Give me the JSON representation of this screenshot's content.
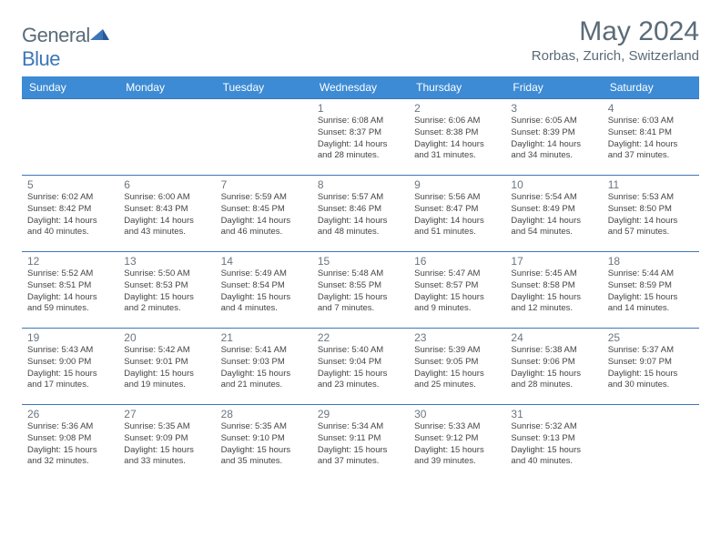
{
  "logo": {
    "word1": "General",
    "word2": "Blue"
  },
  "title": "May 2024",
  "location": "Rorbas, Zurich, Switzerland",
  "colors": {
    "header_bg": "#3d8bd4",
    "header_text": "#ffffff",
    "cell_border": "#3d76b8",
    "title_color": "#5a6b78",
    "logo_gray": "#5a6b78",
    "logo_blue": "#3d76b8",
    "text": "#444444",
    "daynum": "#6b7680",
    "bg": "#ffffff"
  },
  "typography": {
    "title_fontsize_pt": 22,
    "location_fontsize_pt": 11,
    "weekday_fontsize_pt": 9,
    "daynum_fontsize_pt": 9,
    "cell_fontsize_pt": 7
  },
  "weekdays": [
    "Sunday",
    "Monday",
    "Tuesday",
    "Wednesday",
    "Thursday",
    "Friday",
    "Saturday"
  ],
  "weeks": [
    [
      null,
      null,
      null,
      {
        "n": "1",
        "sr": "6:08 AM",
        "ss": "8:37 PM",
        "dl": "14 hours and 28 minutes."
      },
      {
        "n": "2",
        "sr": "6:06 AM",
        "ss": "8:38 PM",
        "dl": "14 hours and 31 minutes."
      },
      {
        "n": "3",
        "sr": "6:05 AM",
        "ss": "8:39 PM",
        "dl": "14 hours and 34 minutes."
      },
      {
        "n": "4",
        "sr": "6:03 AM",
        "ss": "8:41 PM",
        "dl": "14 hours and 37 minutes."
      }
    ],
    [
      {
        "n": "5",
        "sr": "6:02 AM",
        "ss": "8:42 PM",
        "dl": "14 hours and 40 minutes."
      },
      {
        "n": "6",
        "sr": "6:00 AM",
        "ss": "8:43 PM",
        "dl": "14 hours and 43 minutes."
      },
      {
        "n": "7",
        "sr": "5:59 AM",
        "ss": "8:45 PM",
        "dl": "14 hours and 46 minutes."
      },
      {
        "n": "8",
        "sr": "5:57 AM",
        "ss": "8:46 PM",
        "dl": "14 hours and 48 minutes."
      },
      {
        "n": "9",
        "sr": "5:56 AM",
        "ss": "8:47 PM",
        "dl": "14 hours and 51 minutes."
      },
      {
        "n": "10",
        "sr": "5:54 AM",
        "ss": "8:49 PM",
        "dl": "14 hours and 54 minutes."
      },
      {
        "n": "11",
        "sr": "5:53 AM",
        "ss": "8:50 PM",
        "dl": "14 hours and 57 minutes."
      }
    ],
    [
      {
        "n": "12",
        "sr": "5:52 AM",
        "ss": "8:51 PM",
        "dl": "14 hours and 59 minutes."
      },
      {
        "n": "13",
        "sr": "5:50 AM",
        "ss": "8:53 PM",
        "dl": "15 hours and 2 minutes."
      },
      {
        "n": "14",
        "sr": "5:49 AM",
        "ss": "8:54 PM",
        "dl": "15 hours and 4 minutes."
      },
      {
        "n": "15",
        "sr": "5:48 AM",
        "ss": "8:55 PM",
        "dl": "15 hours and 7 minutes."
      },
      {
        "n": "16",
        "sr": "5:47 AM",
        "ss": "8:57 PM",
        "dl": "15 hours and 9 minutes."
      },
      {
        "n": "17",
        "sr": "5:45 AM",
        "ss": "8:58 PM",
        "dl": "15 hours and 12 minutes."
      },
      {
        "n": "18",
        "sr": "5:44 AM",
        "ss": "8:59 PM",
        "dl": "15 hours and 14 minutes."
      }
    ],
    [
      {
        "n": "19",
        "sr": "5:43 AM",
        "ss": "9:00 PM",
        "dl": "15 hours and 17 minutes."
      },
      {
        "n": "20",
        "sr": "5:42 AM",
        "ss": "9:01 PM",
        "dl": "15 hours and 19 minutes."
      },
      {
        "n": "21",
        "sr": "5:41 AM",
        "ss": "9:03 PM",
        "dl": "15 hours and 21 minutes."
      },
      {
        "n": "22",
        "sr": "5:40 AM",
        "ss": "9:04 PM",
        "dl": "15 hours and 23 minutes."
      },
      {
        "n": "23",
        "sr": "5:39 AM",
        "ss": "9:05 PM",
        "dl": "15 hours and 25 minutes."
      },
      {
        "n": "24",
        "sr": "5:38 AM",
        "ss": "9:06 PM",
        "dl": "15 hours and 28 minutes."
      },
      {
        "n": "25",
        "sr": "5:37 AM",
        "ss": "9:07 PM",
        "dl": "15 hours and 30 minutes."
      }
    ],
    [
      {
        "n": "26",
        "sr": "5:36 AM",
        "ss": "9:08 PM",
        "dl": "15 hours and 32 minutes."
      },
      {
        "n": "27",
        "sr": "5:35 AM",
        "ss": "9:09 PM",
        "dl": "15 hours and 33 minutes."
      },
      {
        "n": "28",
        "sr": "5:35 AM",
        "ss": "9:10 PM",
        "dl": "15 hours and 35 minutes."
      },
      {
        "n": "29",
        "sr": "5:34 AM",
        "ss": "9:11 PM",
        "dl": "15 hours and 37 minutes."
      },
      {
        "n": "30",
        "sr": "5:33 AM",
        "ss": "9:12 PM",
        "dl": "15 hours and 39 minutes."
      },
      {
        "n": "31",
        "sr": "5:32 AM",
        "ss": "9:13 PM",
        "dl": "15 hours and 40 minutes."
      },
      null
    ]
  ],
  "labels": {
    "sunrise": "Sunrise:",
    "sunset": "Sunset:",
    "daylight": "Daylight:"
  }
}
